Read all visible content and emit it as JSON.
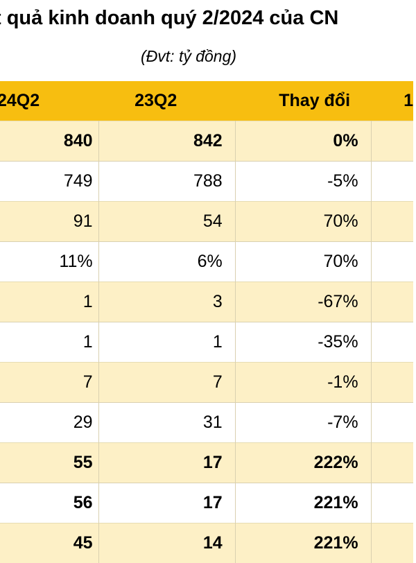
{
  "title": "t quả kinh doanh quý 2/2024 của CN",
  "subtitle": "(Đvt: tỷ đồng)",
  "table": {
    "headers": [
      "24Q2",
      "23Q2",
      "Thay đổi",
      "1"
    ],
    "rows": [
      {
        "a": "840",
        "b": "842",
        "c": "0%",
        "bold": true,
        "shade": true
      },
      {
        "a": "749",
        "b": "788",
        "c": "-5%",
        "bold": false,
        "shade": false
      },
      {
        "a": "91",
        "b": "54",
        "c": "70%",
        "bold": false,
        "shade": true
      },
      {
        "a": "11%",
        "b": "6%",
        "c": "70%",
        "bold": false,
        "shade": false
      },
      {
        "a": "1",
        "b": "3",
        "c": "-67%",
        "bold": false,
        "shade": true
      },
      {
        "a": "1",
        "b": "1",
        "c": "-35%",
        "bold": false,
        "shade": false
      },
      {
        "a": "7",
        "b": "7",
        "c": "-1%",
        "bold": false,
        "shade": true
      },
      {
        "a": "29",
        "b": "31",
        "c": "-7%",
        "bold": false,
        "shade": false
      },
      {
        "a": "55",
        "b": "17",
        "c": "222%",
        "bold": true,
        "shade": true
      },
      {
        "a": "56",
        "b": "17",
        "c": "221%",
        "bold": true,
        "shade": false
      },
      {
        "a": "45",
        "b": "14",
        "c": "221%",
        "bold": true,
        "shade": true
      }
    ]
  },
  "colors": {
    "header_bg": "#f7be10",
    "row_shade": "#fdf0c6",
    "text": "#000000"
  }
}
